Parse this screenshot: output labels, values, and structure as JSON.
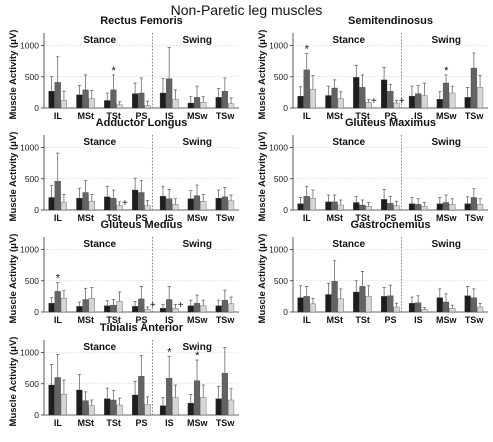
{
  "figure": {
    "title": "Non-Paretic leg muscles"
  },
  "palette": {
    "bar_colors": [
      "#1e1e1e",
      "#636363",
      "#d6d6d6"
    ],
    "error_color": "#555555",
    "divider_color": "#777777",
    "grid_color": "#c8c8c8"
  },
  "chart_data": [
    {
      "type": "bar",
      "title": "Rectus Femoris",
      "ylabel": "Muscle Activity (μV)",
      "ylim": [
        0,
        1200
      ],
      "yticks": [
        "0",
        "500",
        "1000"
      ],
      "phases": [
        "Stance",
        "Swing"
      ],
      "categories": [
        "IL",
        "MSt",
        "TSt",
        "PS",
        "IS",
        "MSw",
        "TSw"
      ],
      "values": [
        [
          270,
          410,
          120
        ],
        [
          210,
          290,
          150
        ],
        [
          120,
          290,
          50
        ],
        [
          230,
          240,
          40
        ],
        [
          240,
          470,
          140
        ],
        [
          80,
          170,
          90
        ],
        [
          170,
          270,
          70
        ]
      ],
      "errors": [
        [
          230,
          410,
          150
        ],
        [
          150,
          240,
          130
        ],
        [
          120,
          240,
          50
        ],
        [
          170,
          240,
          70
        ],
        [
          230,
          500,
          150
        ],
        [
          100,
          180,
          90
        ],
        [
          140,
          210,
          90
        ]
      ],
      "annotations": [
        "",
        "",
        "*",
        "",
        "",
        "",
        ""
      ]
    },
    {
      "type": "bar",
      "title": "Semitendinosus",
      "ylabel": "Muscle Activity (μV)",
      "ylim": [
        0,
        1200
      ],
      "yticks": [
        "0",
        "500",
        "1000"
      ],
      "phases": [
        "Stance",
        "Swing"
      ],
      "categories": [
        "IL",
        "MSt",
        "TSt",
        "PS",
        "IS",
        "MSw",
        "TSw"
      ],
      "values": [
        [
          190,
          610,
          300
        ],
        [
          200,
          320,
          150
        ],
        [
          490,
          330,
          90
        ],
        [
          450,
          270,
          80
        ],
        [
          190,
          230,
          200
        ],
        [
          140,
          400,
          240
        ],
        [
          170,
          640,
          330
        ]
      ],
      "errors": [
        [
          150,
          260,
          220
        ],
        [
          150,
          130,
          110
        ],
        [
          190,
          200,
          50
        ],
        [
          200,
          110,
          40
        ],
        [
          160,
          130,
          200
        ],
        [
          120,
          130,
          110
        ],
        [
          160,
          240,
          190
        ]
      ],
      "annotations": [
        "*",
        "",
        "+",
        "+",
        "",
        "*",
        ""
      ]
    },
    {
      "type": "bar",
      "title": "Adductor Longus",
      "ylabel": "Muscle Activity (μV)",
      "ylim": [
        0,
        1200
      ],
      "yticks": [
        "0",
        "500",
        "1000"
      ],
      "phases": [
        "Stance",
        "Swing"
      ],
      "categories": [
        "IL",
        "MSt",
        "TSt",
        "PS",
        "IS",
        "MSw",
        "TSw"
      ],
      "values": [
        [
          200,
          460,
          120
        ],
        [
          190,
          280,
          140
        ],
        [
          210,
          190,
          70
        ],
        [
          320,
          280,
          70
        ],
        [
          220,
          180,
          90
        ],
        [
          180,
          230,
          140
        ],
        [
          190,
          210,
          150
        ]
      ],
      "errors": [
        [
          190,
          450,
          130
        ],
        [
          160,
          190,
          110
        ],
        [
          170,
          130,
          60
        ],
        [
          190,
          190,
          80
        ],
        [
          160,
          150,
          90
        ],
        [
          130,
          170,
          110
        ],
        [
          130,
          150,
          90
        ]
      ],
      "annotations": [
        "",
        "",
        "+",
        "",
        "",
        "",
        ""
      ]
    },
    {
      "type": "bar",
      "title": "Gluteus Maximus",
      "ylabel": "Muscle Activity (μV)",
      "ylim": [
        0,
        1200
      ],
      "yticks": [
        "0",
        "500",
        "1000"
      ],
      "phases": [
        "Stance",
        "Swing"
      ],
      "categories": [
        "IL",
        "MSt",
        "TSt",
        "PS",
        "IS",
        "MSw",
        "TSw"
      ],
      "values": [
        [
          100,
          220,
          190
        ],
        [
          130,
          130,
          80
        ],
        [
          120,
          80,
          60
        ],
        [
          170,
          110,
          70
        ],
        [
          100,
          90,
          60
        ],
        [
          100,
          120,
          90
        ],
        [
          100,
          200,
          90
        ]
      ],
      "errors": [
        [
          100,
          160,
          130
        ],
        [
          110,
          110,
          80
        ],
        [
          100,
          80,
          60
        ],
        [
          160,
          110,
          70
        ],
        [
          100,
          90,
          60
        ],
        [
          100,
          120,
          90
        ],
        [
          110,
          140,
          90
        ]
      ],
      "annotations": [
        "",
        "",
        "",
        "",
        "",
        "",
        ""
      ]
    },
    {
      "type": "bar",
      "title": "Gluteus Medius",
      "ylabel": "Muscle Activity (μV)",
      "ylim": [
        0,
        1200
      ],
      "yticks": [
        "0",
        "500",
        "1000"
      ],
      "phases": [
        "Stance",
        "Swing"
      ],
      "categories": [
        "IL",
        "MSt",
        "TSt",
        "PS",
        "IS",
        "MSw",
        "TSw"
      ],
      "values": [
        [
          140,
          330,
          220
        ],
        [
          90,
          200,
          220
        ],
        [
          100,
          110,
          170
        ],
        [
          90,
          210,
          40
        ],
        [
          60,
          200,
          60
        ],
        [
          100,
          140,
          100
        ],
        [
          100,
          190,
          130
        ]
      ],
      "errors": [
        [
          90,
          140,
          120
        ],
        [
          70,
          180,
          170
        ],
        [
          80,
          90,
          150
        ],
        [
          80,
          200,
          40
        ],
        [
          60,
          210,
          60
        ],
        [
          90,
          130,
          90
        ],
        [
          90,
          160,
          110
        ]
      ],
      "annotations": [
        "*",
        "",
        "",
        "+",
        "+",
        "",
        ""
      ]
    },
    {
      "type": "bar",
      "title": "Gastrocnemius",
      "ylabel": "Muscle Activity (μV)",
      "ylim": [
        0,
        1200
      ],
      "yticks": [
        "0",
        "500",
        "1000"
      ],
      "phases": [
        "Stance",
        "Swing"
      ],
      "categories": [
        "IL",
        "MSt",
        "TSt",
        "PS",
        "IS",
        "MSw",
        "TSw"
      ],
      "values": [
        [
          230,
          250,
          130
        ],
        [
          280,
          490,
          210
        ],
        [
          320,
          410,
          250
        ],
        [
          250,
          260,
          80
        ],
        [
          140,
          150,
          40
        ],
        [
          230,
          160,
          60
        ],
        [
          260,
          230,
          80
        ]
      ],
      "errors": [
        [
          190,
          160,
          90
        ],
        [
          180,
          330,
          160
        ],
        [
          180,
          240,
          170
        ],
        [
          140,
          170,
          60
        ],
        [
          100,
          110,
          30
        ],
        [
          140,
          130,
          50
        ],
        [
          150,
          140,
          60
        ]
      ],
      "annotations": [
        "",
        "",
        "",
        "",
        "",
        "",
        ""
      ]
    },
    {
      "type": "bar",
      "title": "Tibialis Anterior",
      "ylabel": "Muscle Activity (μV)",
      "ylim": [
        0,
        1200
      ],
      "yticks": [
        "0",
        "500",
        "1000"
      ],
      "phases": [
        "Stance",
        "Swing"
      ],
      "categories": [
        "IL",
        "MSt",
        "TSt",
        "PS",
        "IS",
        "MSw",
        "TSw"
      ],
      "values": [
        [
          480,
          600,
          330
        ],
        [
          400,
          230,
          150
        ],
        [
          260,
          240,
          160
        ],
        [
          320,
          620,
          170
        ],
        [
          150,
          590,
          280
        ],
        [
          190,
          550,
          280
        ],
        [
          260,
          670,
          240
        ]
      ],
      "errors": [
        [
          330,
          370,
          230
        ],
        [
          250,
          140,
          90
        ],
        [
          170,
          150,
          110
        ],
        [
          220,
          330,
          120
        ],
        [
          130,
          350,
          200
        ],
        [
          140,
          330,
          200
        ],
        [
          200,
          410,
          180
        ]
      ],
      "annotations": [
        "",
        "",
        "",
        "",
        "*",
        "*",
        ""
      ]
    }
  ]
}
